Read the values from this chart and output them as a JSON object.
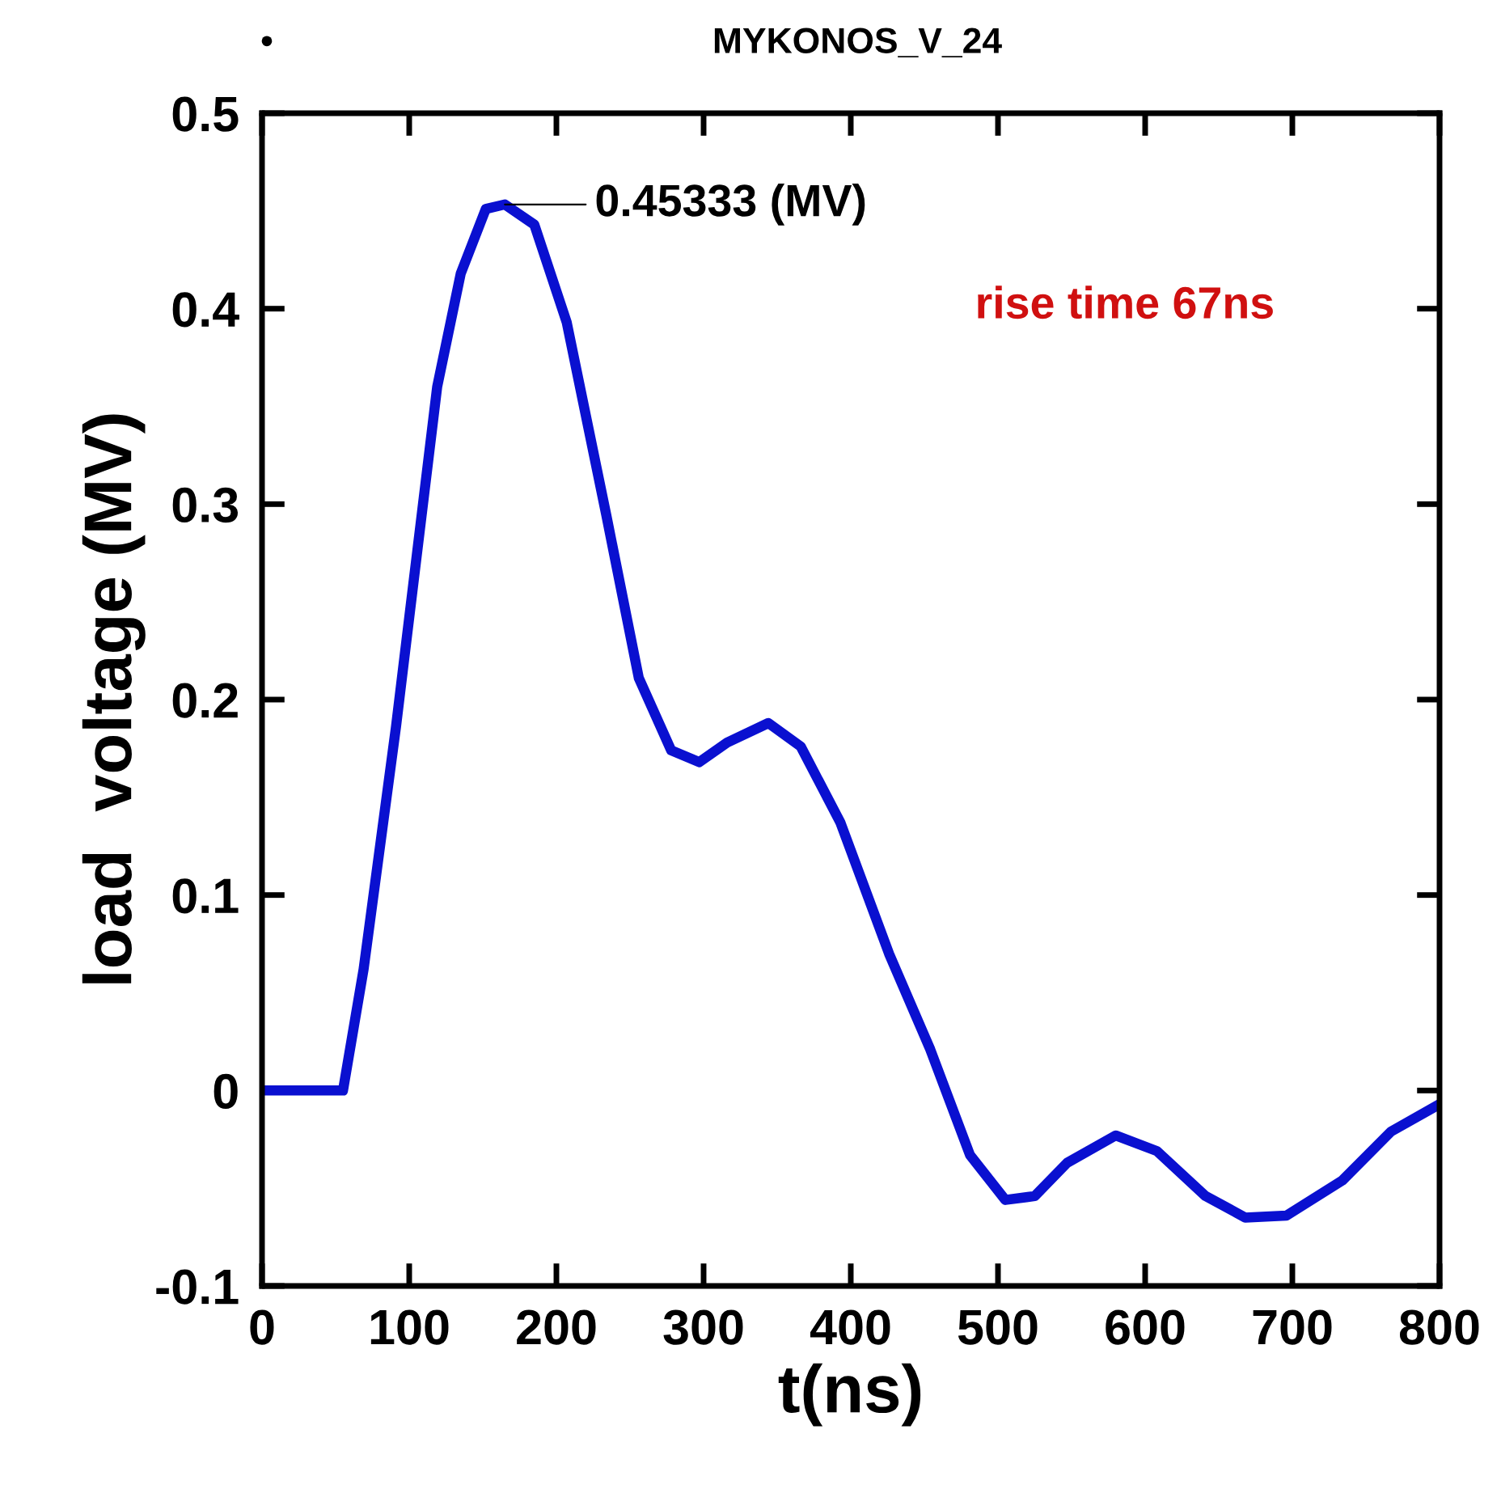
{
  "chart_data": {
    "type": "line",
    "title": "MYKONOS_V_24",
    "xlabel": "t(ns)",
    "ylabel": "load  voltage (MV)",
    "x": [
      0,
      55,
      69,
      91,
      119,
      135,
      152,
      165,
      185,
      207,
      234,
      256,
      278,
      297,
      316,
      344,
      366,
      393,
      426,
      454,
      481,
      505,
      525,
      547,
      580,
      608,
      641,
      668,
      696,
      734,
      767,
      800
    ],
    "series": [
      {
        "color": "#0a10d0",
        "values": [
          0,
          0,
          0.062,
          0.186,
          0.36,
          0.418,
          0.451,
          0.45333,
          0.443,
          0.393,
          0.294,
          0.211,
          0.174,
          0.168,
          0.178,
          0.188,
          0.176,
          0.137,
          0.07,
          0.021,
          -0.033,
          -0.056,
          -0.054,
          -0.037,
          -0.023,
          -0.031,
          -0.054,
          -0.065,
          -0.064,
          -0.046,
          -0.021,
          -0.007
        ]
      }
    ],
    "annotations": [
      "•",
      {
        "text": "0.45333 (MV)",
        "x": 165,
        "y": 0.45333
      },
      "rise time 67ns"
    ],
    "xlim": [
      0,
      800
    ],
    "xticks": [
      0,
      100,
      200,
      300,
      400,
      500,
      600,
      700,
      800
    ],
    "ylim": [
      -0.1,
      0.5
    ],
    "yticks": [
      {
        "value": -0.1,
        "label": "-0.1"
      },
      0,
      0.1,
      0.2,
      0.3,
      0.4,
      0.5
    ],
    "grid": false,
    "legend": false,
    "marker": "none",
    "line_style": "solid"
  }
}
